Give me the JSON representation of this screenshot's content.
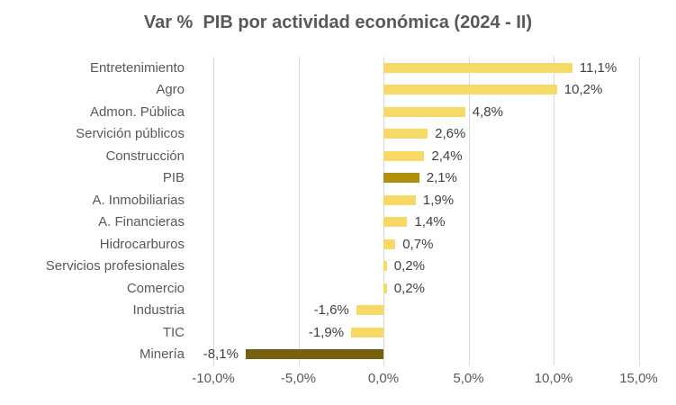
{
  "title": "Var %  PIB por actividad económica (2024 - II)",
  "chart_data": {
    "type": "bar",
    "orientation": "horizontal",
    "title": "Var %  PIB por actividad económica (2024 - II)",
    "categories": [
      "Entretenimiento",
      "Agro",
      "Admon. Pública",
      "Servición públicos",
      "Construcción",
      "PIB",
      "A. Inmobiliarias",
      "A. Financieras",
      "Hidrocarburos",
      "Servicios profesionales",
      "Comercio",
      "Industria",
      "TIC",
      "Minería"
    ],
    "values": [
      11.1,
      10.2,
      4.8,
      2.6,
      2.4,
      2.1,
      1.9,
      1.4,
      0.7,
      0.2,
      0.2,
      -1.6,
      -1.9,
      -8.1
    ],
    "value_labels": [
      "11,1%",
      "10,2%",
      "4,8%",
      "2,6%",
      "2,4%",
      "2,1%",
      "1,9%",
      "1,4%",
      "0,7%",
      "0,2%",
      "0,2%",
      "-1,6%",
      "-1,9%",
      "-8,1%"
    ],
    "bar_colors": [
      "#F6D966",
      "#F6D966",
      "#F6D966",
      "#F6D966",
      "#F6D966",
      "#B08F0E",
      "#F6D966",
      "#F6D966",
      "#F6D966",
      "#F6D966",
      "#F6D966",
      "#F6D966",
      "#F6D966",
      "#75610F"
    ],
    "highlight_categories": [
      "PIB",
      "Minería"
    ],
    "colors": {
      "bar_default": "#F6D966",
      "bar_pib": "#B08F0E",
      "bar_mineria": "#75610F",
      "gridline": "#d9d9d9",
      "title_text": "#595959",
      "axis_text": "#595959",
      "data_label_text": "#404040"
    },
    "x_tick_values": [
      -10,
      -5,
      0,
      5,
      10,
      15
    ],
    "x_tick_labels": [
      "-10,0%",
      "-5,0%",
      "0,0%",
      "5,0%",
      "10,0%",
      "15,0%"
    ],
    "xlim": [
      -10,
      15
    ],
    "grid": true,
    "legend": false
  }
}
